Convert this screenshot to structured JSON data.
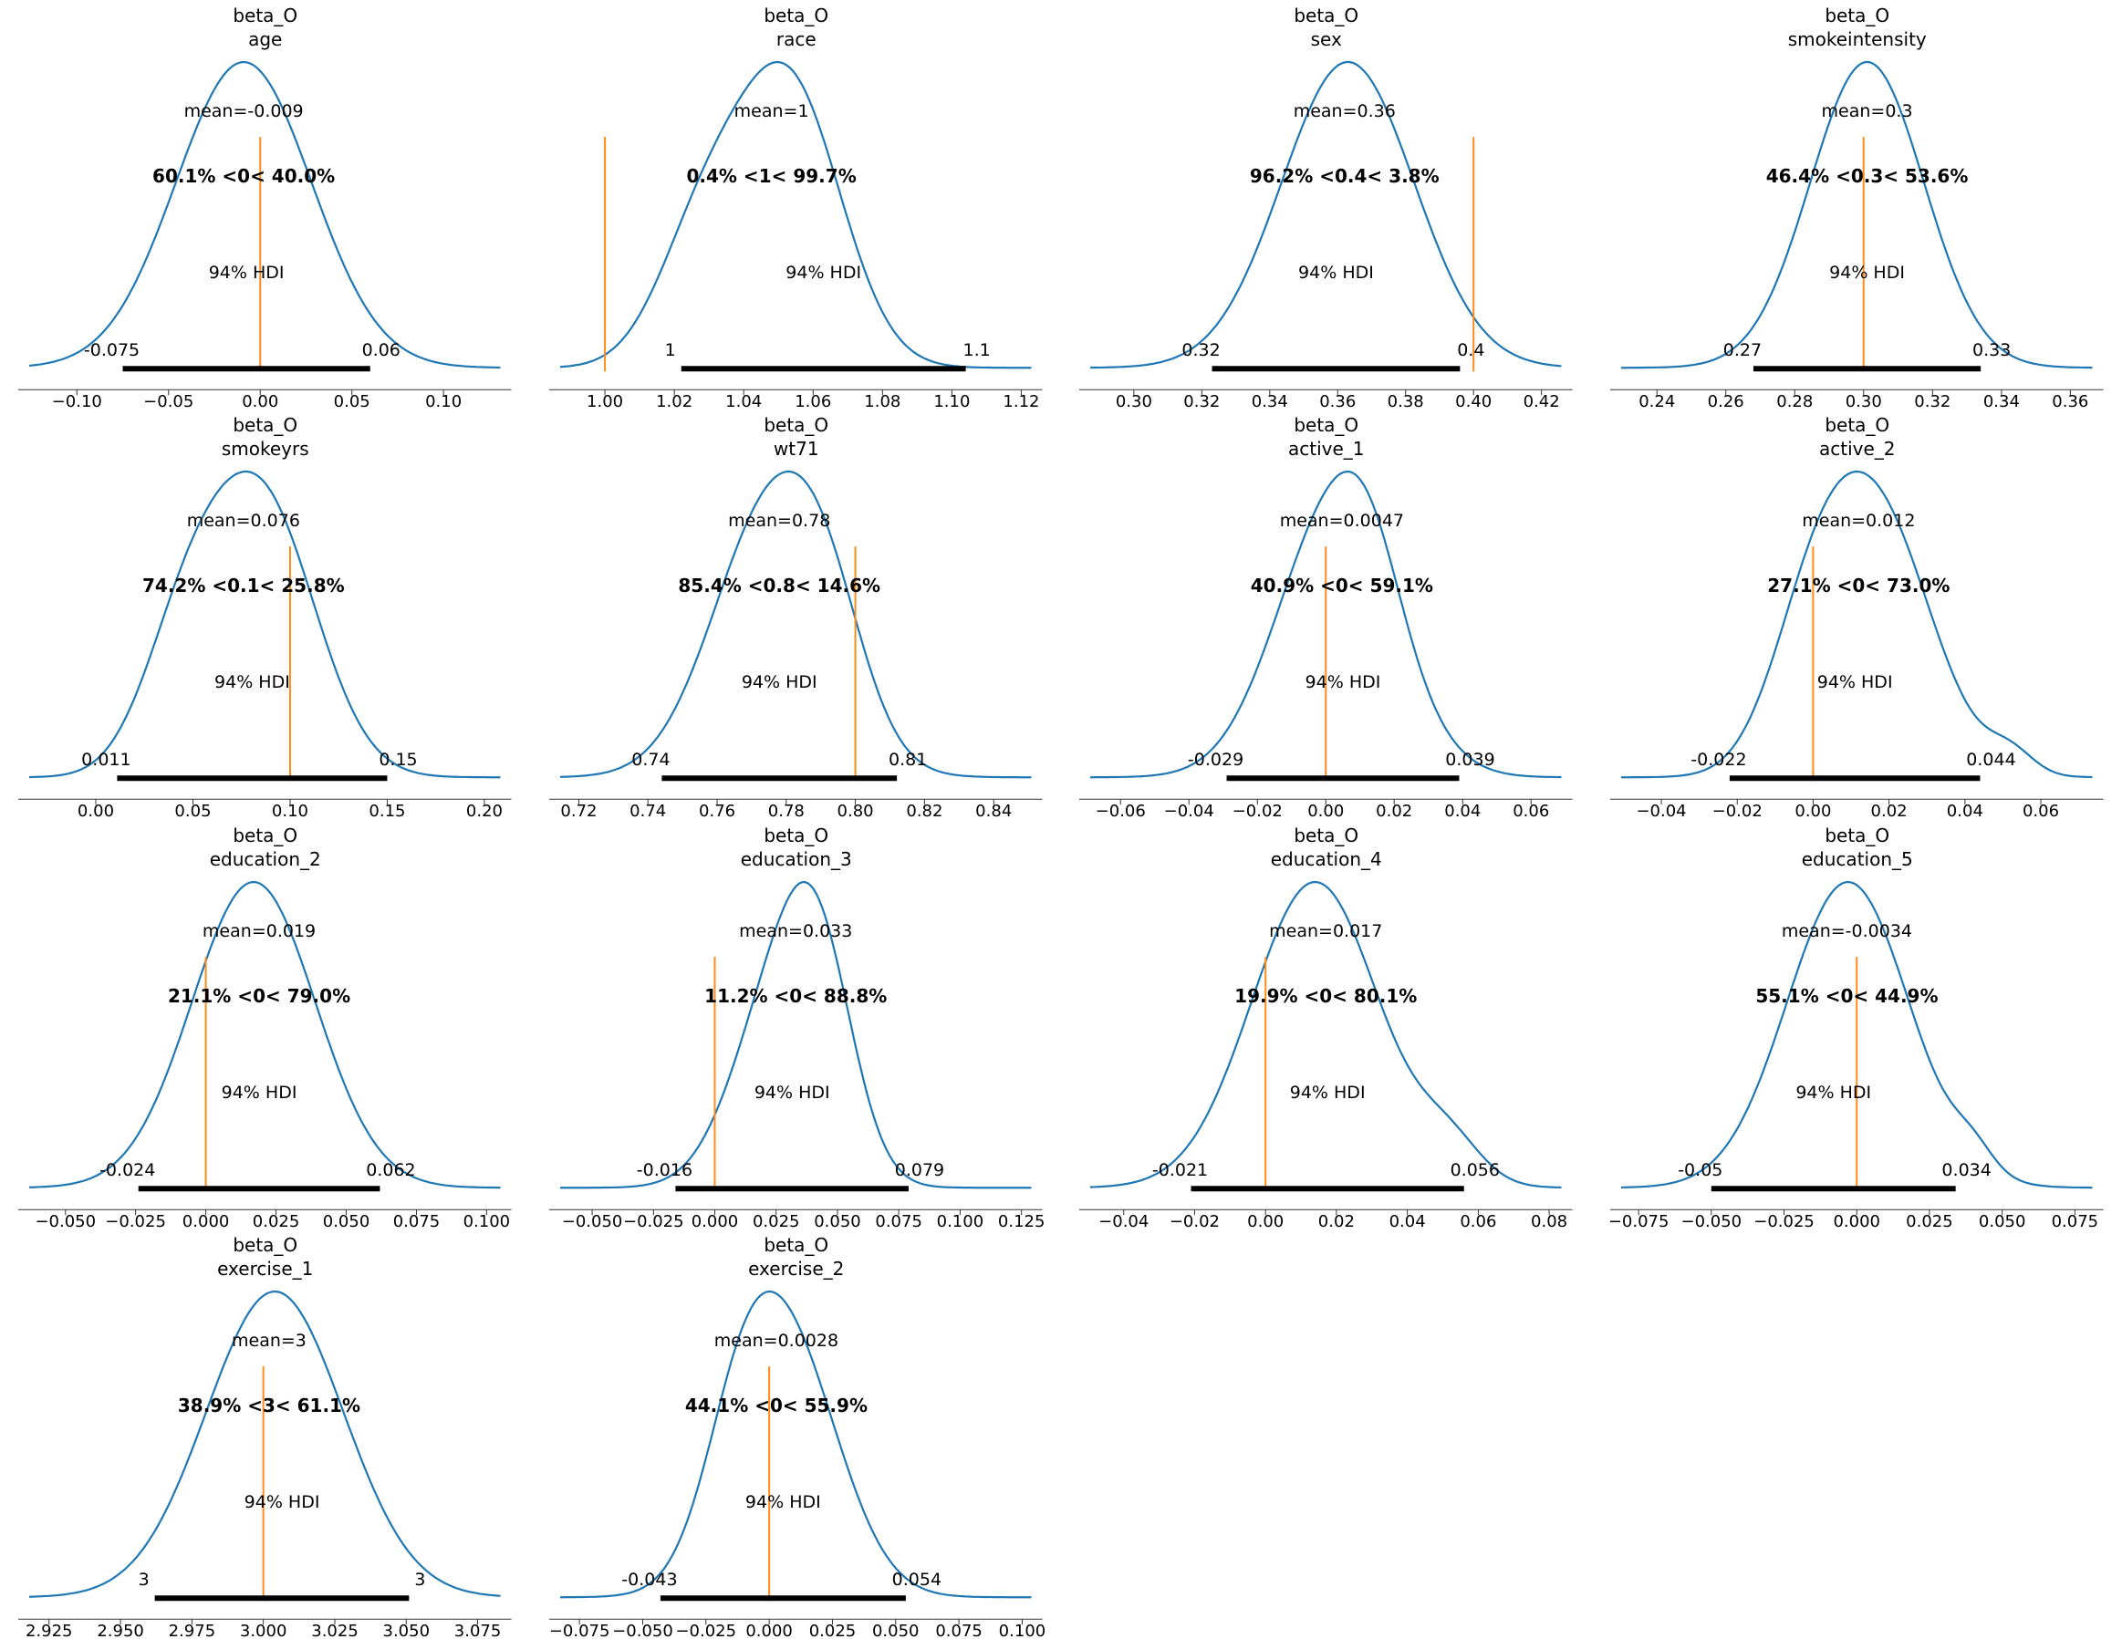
{
  "figure": {
    "hdi_text": "94% HDI",
    "colors": {
      "curve": "#1f77b4",
      "ref": "#ff8c1a",
      "ref_text": "#f5820b",
      "hdi_bar": "#000000",
      "axis": "#333333",
      "text": "#000000"
    }
  },
  "chart_data": {
    "type": "kde",
    "description": "Grid of Bayesian posterior density plots (ArviZ plot_posterior style), 14 variables of parameter beta_O, each with mean, 94% HDI interval and reference-value percentages.",
    "grid": {
      "rows": 4,
      "cols": 4
    },
    "plots": [
      {
        "title_line1": "beta_O",
        "title_line2": "age",
        "mean_label": "mean=-0.009",
        "mean_value": -0.009,
        "pct_text": "60.1% <0< 40.0%",
        "ref_value": 0,
        "hdi_lo": -0.075,
        "hdi_hi": 0.06,
        "hdi_lo_label": "-0.075",
        "hdi_hi_label": "0.06",
        "axis_min": -0.13,
        "axis_max": 0.135,
        "ticks": [
          {
            "v": -0.1,
            "label": "−0.10"
          },
          {
            "v": -0.05,
            "label": "−0.05"
          },
          {
            "v": 0.0,
            "label": "0.00"
          },
          {
            "v": 0.05,
            "label": "0.05"
          },
          {
            "v": 0.1,
            "label": "0.10"
          }
        ],
        "curve": [
          {
            "c": -0.009,
            "sd": 0.037,
            "w": 1
          }
        ]
      },
      {
        "title_line1": "beta_O",
        "title_line2": "race",
        "mean_label": "mean=1",
        "mean_value": 1.048,
        "pct_text": "0.4% <1< 99.7%",
        "ref_value": 1,
        "hdi_lo": 1.022,
        "hdi_hi": 1.104,
        "hdi_lo_label": "1",
        "hdi_hi_label": "1.1",
        "axis_min": 0.985,
        "axis_max": 1.125,
        "ticks": [
          {
            "v": 1.0,
            "label": "1.00"
          },
          {
            "v": 1.02,
            "label": "1.02"
          },
          {
            "v": 1.04,
            "label": "1.04"
          },
          {
            "v": 1.06,
            "label": "1.06"
          },
          {
            "v": 1.08,
            "label": "1.08"
          },
          {
            "v": 1.1,
            "label": "1.10"
          },
          {
            "v": 1.12,
            "label": "1.12"
          }
        ],
        "curve": [
          {
            "c": 1.053,
            "sd": 0.015,
            "w": 1
          },
          {
            "c": 1.028,
            "sd": 0.013,
            "w": 0.45
          }
        ]
      },
      {
        "title_line1": "beta_O",
        "title_line2": "sex",
        "mean_label": "mean=0.36",
        "mean_value": 0.362,
        "pct_text": "96.2% <0.4< 3.8%",
        "ref_value": 0.4,
        "hdi_lo": 0.323,
        "hdi_hi": 0.396,
        "hdi_lo_label": "0.32",
        "hdi_hi_label": "0.4",
        "axis_min": 0.285,
        "axis_max": 0.428,
        "ticks": [
          {
            "v": 0.3,
            "label": "0.30"
          },
          {
            "v": 0.32,
            "label": "0.32"
          },
          {
            "v": 0.34,
            "label": "0.34"
          },
          {
            "v": 0.36,
            "label": "0.36"
          },
          {
            "v": 0.38,
            "label": "0.38"
          },
          {
            "v": 0.4,
            "label": "0.40"
          },
          {
            "v": 0.42,
            "label": "0.42"
          }
        ],
        "curve": [
          {
            "c": 0.363,
            "sd": 0.0195,
            "w": 1
          }
        ]
      },
      {
        "title_line1": "beta_O",
        "title_line2": "smokeintensity",
        "mean_label": "mean=0.3",
        "mean_value": 0.301,
        "pct_text": "46.4% <0.3< 53.6%",
        "ref_value": 0.3,
        "hdi_lo": 0.268,
        "hdi_hi": 0.334,
        "hdi_lo_label": "0.27",
        "hdi_hi_label": "0.33",
        "axis_min": 0.2275,
        "axis_max": 0.3685,
        "ticks": [
          {
            "v": 0.24,
            "label": "0.24"
          },
          {
            "v": 0.26,
            "label": "0.26"
          },
          {
            "v": 0.28,
            "label": "0.28"
          },
          {
            "v": 0.3,
            "label": "0.30"
          },
          {
            "v": 0.32,
            "label": "0.32"
          },
          {
            "v": 0.34,
            "label": "0.34"
          },
          {
            "v": 0.36,
            "label": "0.36"
          }
        ],
        "curve": [
          {
            "c": 0.301,
            "sd": 0.0165,
            "w": 1
          }
        ]
      },
      {
        "title_line1": "beta_O",
        "title_line2": "smokeyrs",
        "mean_label": "mean=0.076",
        "mean_value": 0.076,
        "pct_text": "74.2% <0.1< 25.8%",
        "ref_value": 0.1,
        "hdi_lo": 0.011,
        "hdi_hi": 0.15,
        "hdi_lo_label": "0.011",
        "hdi_hi_label": "0.15",
        "axis_min": -0.038,
        "axis_max": 0.212,
        "ticks": [
          {
            "v": 0.0,
            "label": "0.00"
          },
          {
            "v": 0.05,
            "label": "0.05"
          },
          {
            "v": 0.1,
            "label": "0.10"
          },
          {
            "v": 0.15,
            "label": "0.15"
          },
          {
            "v": 0.2,
            "label": "0.20"
          }
        ],
        "curve": [
          {
            "c": 0.085,
            "sd": 0.028,
            "w": 1
          },
          {
            "c": 0.045,
            "sd": 0.022,
            "w": 0.42
          }
        ]
      },
      {
        "title_line1": "beta_O",
        "title_line2": "wt71",
        "mean_label": "mean=0.78",
        "mean_value": 0.778,
        "pct_text": "85.4% <0.8< 14.6%",
        "ref_value": 0.8,
        "hdi_lo": 0.744,
        "hdi_hi": 0.812,
        "hdi_lo_label": "0.74",
        "hdi_hi_label": "0.81",
        "axis_min": 0.7125,
        "axis_max": 0.853,
        "ticks": [
          {
            "v": 0.72,
            "label": "0.72"
          },
          {
            "v": 0.74,
            "label": "0.74"
          },
          {
            "v": 0.76,
            "label": "0.76"
          },
          {
            "v": 0.78,
            "label": "0.78"
          },
          {
            "v": 0.8,
            "label": "0.80"
          },
          {
            "v": 0.82,
            "label": "0.82"
          },
          {
            "v": 0.84,
            "label": "0.84"
          }
        ],
        "curve": [
          {
            "c": 0.776,
            "sd": 0.017,
            "w": 1
          },
          {
            "c": 0.792,
            "sd": 0.011,
            "w": 0.28
          }
        ]
      },
      {
        "title_line1": "beta_O",
        "title_line2": "active_1",
        "mean_label": "mean=0.0047",
        "mean_value": 0.0047,
        "pct_text": "40.9% <0< 59.1%",
        "ref_value": 0,
        "hdi_lo": -0.029,
        "hdi_hi": 0.039,
        "hdi_lo_label": "-0.029",
        "hdi_hi_label": "0.039",
        "axis_min": -0.071,
        "axis_max": 0.071,
        "ticks": [
          {
            "v": -0.06,
            "label": "−0.06"
          },
          {
            "v": -0.04,
            "label": "−0.04"
          },
          {
            "v": -0.02,
            "label": "−0.02"
          },
          {
            "v": 0.0,
            "label": "0.00"
          },
          {
            "v": 0.02,
            "label": "0.02"
          },
          {
            "v": 0.04,
            "label": "0.04"
          },
          {
            "v": 0.06,
            "label": "0.06"
          }
        ],
        "curve": [
          {
            "c": 0.003,
            "sd": 0.017,
            "w": 1
          },
          {
            "c": 0.013,
            "sd": 0.009,
            "w": 0.18
          }
        ]
      },
      {
        "title_line1": "beta_O",
        "title_line2": "active_2",
        "mean_label": "mean=0.012",
        "mean_value": 0.012,
        "pct_text": "27.1% <0< 73.0%",
        "ref_value": 0,
        "hdi_lo": -0.022,
        "hdi_hi": 0.044,
        "hdi_lo_label": "-0.022",
        "hdi_hi_label": "0.044",
        "axis_min": -0.0525,
        "axis_max": 0.0755,
        "ticks": [
          {
            "v": -0.04,
            "label": "−0.04"
          },
          {
            "v": -0.02,
            "label": "−0.02"
          },
          {
            "v": 0.0,
            "label": "0.00"
          },
          {
            "v": 0.02,
            "label": "0.02"
          },
          {
            "v": 0.04,
            "label": "0.04"
          },
          {
            "v": 0.06,
            "label": "0.06"
          }
        ],
        "curve": [
          {
            "c": 0.016,
            "sd": 0.015,
            "w": 1
          },
          {
            "c": -0.001,
            "sd": 0.011,
            "w": 0.35
          },
          {
            "c": 0.052,
            "sd": 0.006,
            "w": 0.08
          }
        ]
      },
      {
        "title_line1": "beta_O",
        "title_line2": "education_2",
        "mean_label": "mean=0.019",
        "mean_value": 0.019,
        "pct_text": "21.1% <0< 79.0%",
        "ref_value": 0,
        "hdi_lo": -0.024,
        "hdi_hi": 0.062,
        "hdi_lo_label": "-0.024",
        "hdi_hi_label": "0.062",
        "axis_min": -0.0655,
        "axis_max": 0.1075,
        "ticks": [
          {
            "v": -0.05,
            "label": "−0.050"
          },
          {
            "v": -0.025,
            "label": "−0.025"
          },
          {
            "v": 0.0,
            "label": "0.000"
          },
          {
            "v": 0.025,
            "label": "0.025"
          },
          {
            "v": 0.05,
            "label": "0.050"
          },
          {
            "v": 0.075,
            "label": "0.075"
          },
          {
            "v": 0.1,
            "label": "0.100"
          }
        ],
        "curve": [
          {
            "c": 0.017,
            "sd": 0.022,
            "w": 1
          }
        ]
      },
      {
        "title_line1": "beta_O",
        "title_line2": "education_3",
        "mean_label": "mean=0.033",
        "mean_value": 0.033,
        "pct_text": "11.2% <0< 88.8%",
        "ref_value": 0,
        "hdi_lo": -0.016,
        "hdi_hi": 0.079,
        "hdi_lo_label": "-0.016",
        "hdi_hi_label": "0.079",
        "axis_min": -0.066,
        "axis_max": 0.132,
        "ticks": [
          {
            "v": -0.05,
            "label": "−0.050"
          },
          {
            "v": -0.025,
            "label": "−0.025"
          },
          {
            "v": 0.0,
            "label": "0.000"
          },
          {
            "v": 0.025,
            "label": "0.025"
          },
          {
            "v": 0.05,
            "label": "0.050"
          },
          {
            "v": 0.075,
            "label": "0.075"
          },
          {
            "v": 0.1,
            "label": "0.100"
          },
          {
            "v": 0.125,
            "label": "0.125"
          }
        ],
        "curve": [
          {
            "c": 0.027,
            "sd": 0.019,
            "w": 1
          },
          {
            "c": 0.043,
            "sd": 0.014,
            "w": 0.75
          }
        ]
      },
      {
        "title_line1": "beta_O",
        "title_line2": "education_4",
        "mean_label": "mean=0.017",
        "mean_value": 0.017,
        "pct_text": "19.9% <0< 80.1%",
        "ref_value": 0,
        "hdi_lo": -0.021,
        "hdi_hi": 0.056,
        "hdi_lo_label": "-0.021",
        "hdi_hi_label": "0.056",
        "axis_min": -0.0515,
        "axis_max": 0.0855,
        "ticks": [
          {
            "v": -0.04,
            "label": "−0.04"
          },
          {
            "v": -0.02,
            "label": "−0.02"
          },
          {
            "v": 0.0,
            "label": "0.00"
          },
          {
            "v": 0.02,
            "label": "0.02"
          },
          {
            "v": 0.04,
            "label": "0.04"
          },
          {
            "v": 0.06,
            "label": "0.06"
          },
          {
            "v": 0.08,
            "label": "0.08"
          }
        ],
        "curve": [
          {
            "c": 0.014,
            "sd": 0.018,
            "w": 1
          },
          {
            "c": 0.052,
            "sd": 0.009,
            "w": 0.12
          }
        ]
      },
      {
        "title_line1": "beta_O",
        "title_line2": "education_5",
        "mean_label": "mean=-0.0034",
        "mean_value": -0.0034,
        "pct_text": "55.1% <0< 44.9%",
        "ref_value": 0,
        "hdi_lo": -0.05,
        "hdi_hi": 0.034,
        "hdi_lo_label": "-0.05",
        "hdi_hi_label": "0.034",
        "axis_min": -0.0835,
        "axis_max": 0.0835,
        "ticks": [
          {
            "v": -0.075,
            "label": "−0.075"
          },
          {
            "v": -0.05,
            "label": "−0.050"
          },
          {
            "v": -0.025,
            "label": "−0.025"
          },
          {
            "v": 0.0,
            "label": "0.000"
          },
          {
            "v": 0.025,
            "label": "0.025"
          },
          {
            "v": 0.05,
            "label": "0.050"
          },
          {
            "v": 0.075,
            "label": "0.075"
          }
        ],
        "curve": [
          {
            "c": -0.003,
            "sd": 0.021,
            "w": 1
          },
          {
            "c": 0.04,
            "sd": 0.007,
            "w": 0.07
          }
        ]
      },
      {
        "title_line1": "beta_O",
        "title_line2": "exercise_1",
        "mean_label": "mean=3",
        "mean_value": 3.002,
        "pct_text": "38.9% <3< 61.1%",
        "ref_value": 3,
        "hdi_lo": 2.962,
        "hdi_hi": 3.051,
        "hdi_lo_label": "3",
        "hdi_hi_label": "3",
        "axis_min": 2.9155,
        "axis_max": 3.0855,
        "ticks": [
          {
            "v": 2.925,
            "label": "2.925"
          },
          {
            "v": 2.95,
            "label": "2.950"
          },
          {
            "v": 2.975,
            "label": "2.975"
          },
          {
            "v": 3.0,
            "label": "3.000"
          },
          {
            "v": 3.025,
            "label": "3.025"
          },
          {
            "v": 3.05,
            "label": "3.050"
          },
          {
            "v": 3.075,
            "label": "3.075"
          }
        ],
        "curve": [
          {
            "c": 3.004,
            "sd": 0.024,
            "w": 1
          }
        ]
      },
      {
        "title_line1": "beta_O",
        "title_line2": "exercise_2",
        "mean_label": "mean=0.0028",
        "mean_value": 0.0028,
        "pct_text": "44.1% <0< 55.9%",
        "ref_value": 0,
        "hdi_lo": -0.043,
        "hdi_hi": 0.054,
        "hdi_lo_label": "-0.043",
        "hdi_hi_label": "0.054",
        "axis_min": -0.0855,
        "axis_max": 0.1065,
        "ticks": [
          {
            "v": -0.075,
            "label": "−0.075"
          },
          {
            "v": -0.05,
            "label": "−0.050"
          },
          {
            "v": -0.025,
            "label": "−0.025"
          },
          {
            "v": 0.0,
            "label": "0.000"
          },
          {
            "v": 0.025,
            "label": "0.025"
          },
          {
            "v": 0.05,
            "label": "0.050"
          },
          {
            "v": 0.075,
            "label": "0.075"
          },
          {
            "v": 0.1,
            "label": "0.100"
          }
        ],
        "curve": [
          {
            "c": 0.006,
            "sd": 0.021,
            "w": 1
          },
          {
            "c": -0.012,
            "sd": 0.014,
            "w": 0.3
          }
        ]
      }
    ]
  }
}
